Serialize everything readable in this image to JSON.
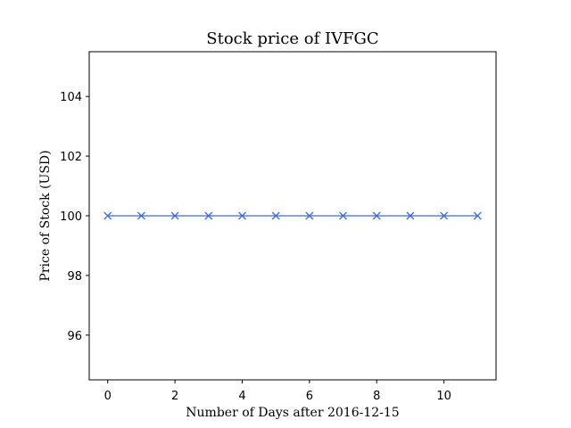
{
  "chart_data": {
    "type": "line",
    "title": "Stock price of IVFGC",
    "xlabel": "Number of Days after 2016-12-15",
    "ylabel": "Price of Stock (USD)",
    "xlim": [
      -0.55,
      11.55
    ],
    "ylim": [
      94.5,
      105.5
    ],
    "xticks": [
      0,
      2,
      4,
      6,
      8,
      10
    ],
    "yticks": [
      96,
      98,
      100,
      102,
      104
    ],
    "grid": false,
    "series": [
      {
        "color": "#4169e1",
        "marker": "x",
        "x": [
          0,
          1,
          2,
          3,
          4,
          5,
          6,
          7,
          8,
          9,
          10,
          11
        ],
        "y": [
          100,
          100,
          100,
          100,
          100,
          100,
          100,
          100,
          100,
          100,
          100,
          100
        ]
      }
    ]
  }
}
